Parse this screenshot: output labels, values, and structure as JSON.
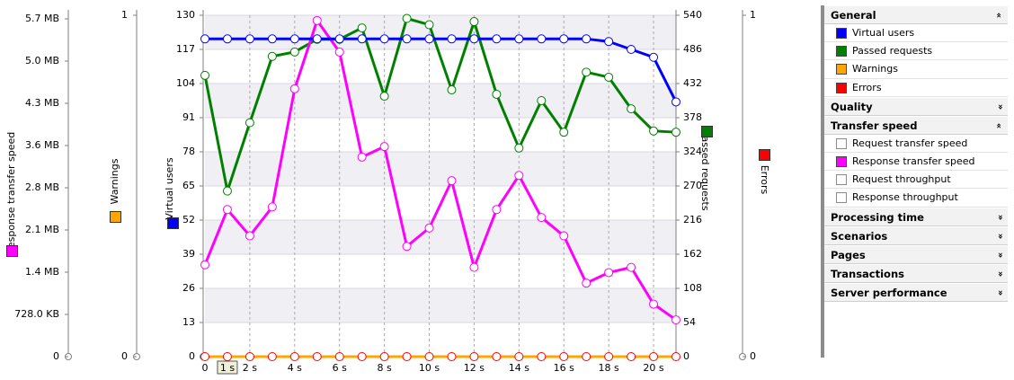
{
  "chart_data": {
    "type": "line",
    "x_ticks": [
      "0",
      "1 s",
      "2 s",
      "4 s",
      "6 s",
      "8 s",
      "10 s",
      "12 s",
      "14 s",
      "16 s",
      "18 s",
      "20 s"
    ],
    "x_unit": "s",
    "xlim": [
      0,
      21
    ],
    "axes": [
      {
        "key": "response",
        "label": "Response transfer speed",
        "ticks": [
          "5.7 MB",
          "5.0 MB",
          "4.3 MB",
          "3.6 MB",
          "2.8 MB",
          "2.1 MB",
          "1.4 MB",
          "728.0 KB",
          "0"
        ],
        "color": "#ff00ff"
      },
      {
        "key": "warnings",
        "label": "Warnings",
        "ticks": [
          "1",
          "0"
        ],
        "color": "#ffa500"
      },
      {
        "key": "users",
        "label": "Virtual users",
        "ticks": [
          "130",
          "117",
          "104",
          "91",
          "78",
          "65",
          "52",
          "39",
          "26",
          "13",
          "0"
        ],
        "ylim": [
          0,
          130
        ],
        "color": "#0000ff"
      },
      {
        "key": "passed",
        "label": "Passed requests",
        "ticks": [
          "540",
          "486",
          "432",
          "378",
          "324",
          "270",
          "216",
          "162",
          "108",
          "54",
          "0"
        ],
        "ylim": [
          0,
          540
        ],
        "color": "#007f00"
      },
      {
        "key": "errors",
        "label": "Errors",
        "ticks": [
          "1",
          "0"
        ],
        "color": "#ff0000"
      }
    ],
    "series": [
      {
        "name": "Virtual users",
        "axis": "users",
        "color": "#0000ff",
        "x": [
          0,
          1,
          2,
          3,
          4,
          5,
          6,
          7,
          8,
          9,
          10,
          11,
          12,
          13,
          14,
          15,
          16,
          17,
          18,
          19,
          20,
          21
        ],
        "y": [
          121,
          121,
          121,
          121,
          121,
          121,
          121,
          121,
          121,
          121,
          121,
          121,
          121,
          121,
          121,
          121,
          121,
          121,
          120,
          117,
          114,
          97
        ]
      },
      {
        "name": "Passed requests",
        "axis": "passed",
        "color": "#007f00",
        "x": [
          0,
          1,
          2,
          3,
          4,
          5,
          6,
          7,
          8,
          9,
          10,
          11,
          12,
          13,
          14,
          15,
          16,
          17,
          18,
          19,
          20,
          21
        ],
        "y": [
          445,
          262,
          370,
          475,
          482,
          502,
          502,
          520,
          412,
          535,
          525,
          422,
          530,
          415,
          330,
          405,
          355,
          450,
          442,
          392,
          357,
          355
        ]
      },
      {
        "name": "Response transfer speed",
        "axis": "users",
        "color": "#ff00ff",
        "x": [
          0,
          1,
          2,
          3,
          4,
          5,
          6,
          7,
          8,
          9,
          10,
          11,
          12,
          13,
          14,
          15,
          16,
          17,
          18,
          19,
          20,
          21
        ],
        "y": [
          35,
          56,
          46,
          57,
          102,
          128,
          116,
          76,
          80,
          42,
          49,
          67,
          34,
          56,
          69,
          53,
          46,
          28,
          32,
          34,
          20,
          14
        ]
      },
      {
        "name": "Warnings",
        "axis": "users",
        "color": "#ffa500",
        "x": [
          0,
          21
        ],
        "y": [
          0,
          0
        ]
      },
      {
        "name": "Errors",
        "axis": "users",
        "color": "#ff0000",
        "x": [
          0,
          1,
          2,
          3,
          4,
          5,
          6,
          7,
          8,
          9,
          10,
          11,
          12,
          13,
          14,
          15,
          16,
          17,
          18,
          19,
          20,
          21
        ],
        "y": [
          0,
          0,
          0,
          0,
          0,
          0,
          0,
          0,
          0,
          0,
          0,
          0,
          0,
          0,
          0,
          0,
          0,
          0,
          0,
          0,
          0,
          0
        ]
      }
    ],
    "grid": true
  },
  "panel": {
    "sections": [
      {
        "title": "General",
        "expanded": true,
        "chevron": "»",
        "items": [
          {
            "label": "Virtual users",
            "color": "#0000ff",
            "checked": true
          },
          {
            "label": "Passed requests",
            "color": "#007f00",
            "checked": true
          },
          {
            "label": "Warnings",
            "color": "#ffa500",
            "checked": true
          },
          {
            "label": "Errors",
            "color": "#ff0000",
            "checked": true
          }
        ]
      },
      {
        "title": "Quality",
        "expanded": false,
        "chevron": "»",
        "items": []
      },
      {
        "title": "Transfer speed",
        "expanded": true,
        "chevron": "»",
        "items": [
          {
            "label": "Request transfer speed",
            "color": "#ffffff",
            "checked": false
          },
          {
            "label": "Response transfer speed",
            "color": "#ff00ff",
            "checked": true
          },
          {
            "label": "Request throughput",
            "color": "#ffffff",
            "checked": false
          },
          {
            "label": "Response throughput",
            "color": "#ffffff",
            "checked": false
          }
        ]
      },
      {
        "title": "Processing time",
        "expanded": false,
        "chevron": "»",
        "items": []
      },
      {
        "title": "Scenarios",
        "expanded": false,
        "chevron": "»",
        "items": []
      },
      {
        "title": "Pages",
        "expanded": false,
        "chevron": "»",
        "items": []
      },
      {
        "title": "Transactions",
        "expanded": false,
        "chevron": "»",
        "items": []
      },
      {
        "title": "Server performance",
        "expanded": false,
        "chevron": "»",
        "items": []
      }
    ]
  }
}
